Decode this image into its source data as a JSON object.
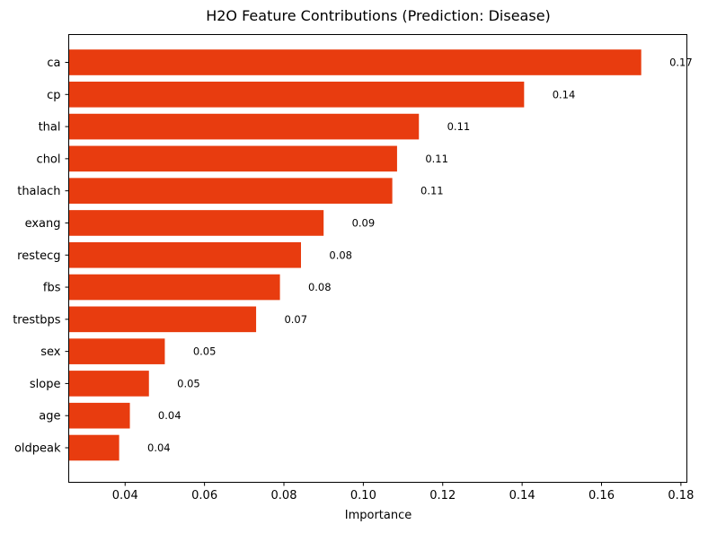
{
  "chart_data": {
    "type": "bar",
    "orientation": "horizontal",
    "title": "H2O Feature Contributions (Prediction: Disease)",
    "xlabel": "Importance",
    "ylabel": "",
    "categories": [
      "ca",
      "cp",
      "thal",
      "chol",
      "thalach",
      "exang",
      "restecg",
      "fbs",
      "trestbps",
      "sex",
      "slope",
      "age",
      "oldpeak"
    ],
    "values": [
      0.17,
      0.1405,
      0.114,
      0.1085,
      0.1073,
      0.09,
      0.0843,
      0.079,
      0.073,
      0.05,
      0.046,
      0.0412,
      0.0385
    ],
    "value_labels": [
      "0.17",
      "0.14",
      "0.11",
      "0.11",
      "0.11",
      "0.09",
      "0.08",
      "0.08",
      "0.07",
      "0.05",
      "0.05",
      "0.04",
      "0.04"
    ],
    "xlim": [
      0.0258,
      0.1815
    ],
    "xticks": [
      0.04,
      0.06,
      0.08,
      0.1,
      0.12,
      0.14,
      0.16,
      0.18
    ],
    "xtick_labels": [
      "0.04",
      "0.06",
      "0.08",
      "0.10",
      "0.12",
      "0.14",
      "0.16",
      "0.18"
    ],
    "grid": false,
    "bar_color": "#e83c0f"
  }
}
